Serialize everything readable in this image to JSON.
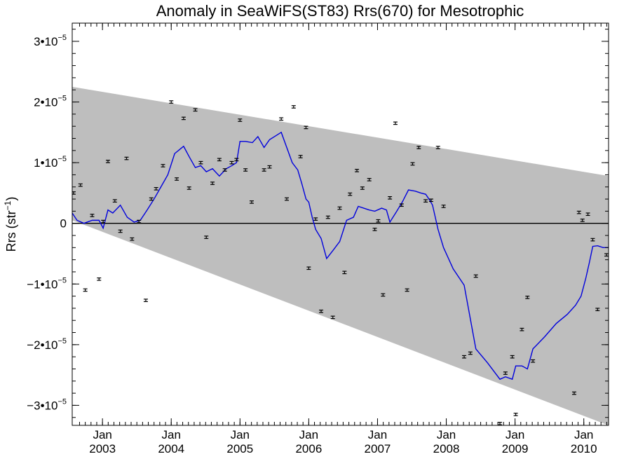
{
  "chart_data": {
    "type": "line",
    "title": "Anomaly in SeaWiFS(ST83) Rrs(670) for Mesotrophic",
    "ylabel": "Rrs (str⁻¹)",
    "xlabel": "",
    "x_unit": "decimal year",
    "xlim": [
      2002.56,
      2010.36
    ],
    "ylim": [
      -3.33e-05,
      3.3e-05
    ],
    "grid": false,
    "y_ticks": [
      {
        "value": -3e-05,
        "label_mantissa": "−3•10",
        "label_exp": "−5"
      },
      {
        "value": -2e-05,
        "label_mantissa": "−2•10",
        "label_exp": "−5"
      },
      {
        "value": -1e-05,
        "label_mantissa": "−1•10",
        "label_exp": "−5"
      },
      {
        "value": 0,
        "label_mantissa": "0",
        "label_exp": ""
      },
      {
        "value": 1e-05,
        "label_mantissa": "1•10",
        "label_exp": "−5"
      },
      {
        "value": 2e-05,
        "label_mantissa": "2•10",
        "label_exp": "−5"
      },
      {
        "value": 3e-05,
        "label_mantissa": "3•10",
        "label_exp": "−5"
      }
    ],
    "x_ticks": [
      {
        "value": 2003.0,
        "month": "Jan",
        "year": "2003"
      },
      {
        "value": 2004.0,
        "month": "Jan",
        "year": "2004"
      },
      {
        "value": 2005.0,
        "month": "Jan",
        "year": "2005"
      },
      {
        "value": 2006.0,
        "month": "Jan",
        "year": "2006"
      },
      {
        "value": 2007.0,
        "month": "Jan",
        "year": "2007"
      },
      {
        "value": 2008.0,
        "month": "Jan",
        "year": "2008"
      },
      {
        "value": 2009.0,
        "month": "Jan",
        "year": "2009"
      },
      {
        "value": 2010.0,
        "month": "Jan",
        "year": "2010"
      }
    ],
    "envelope": {
      "color": "#bebebe",
      "upper": [
        [
          2002.56,
          2.25e-05
        ],
        [
          2010.36,
          7.8e-06
        ]
      ],
      "lower": [
        [
          2002.56,
          5e-07
        ],
        [
          2010.36,
          -3.33e-05
        ]
      ]
    },
    "zero_line": {
      "y": 0,
      "color": "#000000"
    },
    "series": [
      {
        "kind": "points_with_errorbars",
        "color": "#000000",
        "error": 2e-07,
        "points": [
          [
            2002.58,
            5e-06
          ],
          [
            2002.68,
            6.3e-06
          ],
          [
            2002.75,
            -1.1e-05
          ],
          [
            2002.85,
            1.3e-06
          ],
          [
            2002.95,
            -9.2e-06
          ],
          [
            2003.01,
            3e-07
          ],
          [
            2003.08,
            1.02e-05
          ],
          [
            2003.18,
            3.7e-06
          ],
          [
            2003.26,
            -1.3e-06
          ],
          [
            2003.35,
            1.07e-05
          ],
          [
            2003.43,
            -2.6e-06
          ],
          [
            2003.53,
            3e-07
          ],
          [
            2003.63,
            -1.27e-05
          ],
          [
            2003.71,
            4e-06
          ],
          [
            2003.78,
            5.7e-06
          ],
          [
            2003.88,
            9.5e-06
          ],
          [
            2004.0,
            2e-05
          ],
          [
            2004.08,
            7.3e-06
          ],
          [
            2004.18,
            1.73e-05
          ],
          [
            2004.26,
            5.8e-06
          ],
          [
            2004.35,
            1.87e-05
          ],
          [
            2004.43,
            1e-05
          ],
          [
            2004.51,
            -2.3e-06
          ],
          [
            2004.6,
            6.6e-06
          ],
          [
            2004.7,
            1.05e-05
          ],
          [
            2004.78,
            8.8e-06
          ],
          [
            2004.88,
            1e-05
          ],
          [
            2004.95,
            1.05e-05
          ],
          [
            2005.0,
            1.7e-05
          ],
          [
            2005.08,
            8.8e-06
          ],
          [
            2005.17,
            3.5e-06
          ],
          [
            2005.35,
            8.8e-06
          ],
          [
            2005.43,
            9.3e-06
          ],
          [
            2005.6,
            1.72e-05
          ],
          [
            2005.68,
            4e-06
          ],
          [
            2005.78,
            1.92e-05
          ],
          [
            2005.88,
            1.1e-05
          ],
          [
            2005.96,
            1.58e-05
          ],
          [
            2006.0,
            -7.4e-06
          ],
          [
            2006.1,
            7e-07
          ],
          [
            2006.18,
            -1.45e-05
          ],
          [
            2006.28,
            1e-06
          ],
          [
            2006.35,
            -1.55e-05
          ],
          [
            2006.45,
            2.5e-06
          ],
          [
            2006.52,
            -8.1e-06
          ],
          [
            2006.6,
            4.8e-06
          ],
          [
            2006.7,
            8.7e-06
          ],
          [
            2006.78,
            5.8e-06
          ],
          [
            2006.88,
            7.2e-06
          ],
          [
            2006.96,
            -1e-06
          ],
          [
            2007.01,
            4e-07
          ],
          [
            2007.08,
            -1.18e-05
          ],
          [
            2007.18,
            4.2e-06
          ],
          [
            2007.26,
            1.65e-05
          ],
          [
            2007.35,
            3e-06
          ],
          [
            2007.43,
            -1.1e-05
          ],
          [
            2007.51,
            9.8e-06
          ],
          [
            2007.6,
            1.25e-05
          ],
          [
            2007.7,
            3.7e-06
          ],
          [
            2007.78,
            3.8e-06
          ],
          [
            2007.88,
            1.25e-05
          ],
          [
            2007.96,
            2.8e-06
          ],
          [
            2008.26,
            -2.2e-05
          ],
          [
            2008.35,
            -2.14e-05
          ],
          [
            2008.43,
            -8.7e-06
          ],
          [
            2008.78,
            -3.3e-05
          ],
          [
            2008.86,
            -2.47e-05
          ],
          [
            2008.96,
            -2.2e-05
          ],
          [
            2009.01,
            -3.15e-05
          ],
          [
            2009.1,
            -1.75e-05
          ],
          [
            2009.18,
            -1.22e-05
          ],
          [
            2009.26,
            -2.27e-05
          ],
          [
            2009.86,
            -2.8e-05
          ],
          [
            2009.93,
            1.8e-06
          ],
          [
            2009.98,
            5e-07
          ],
          [
            2010.06,
            1.5e-06
          ],
          [
            2010.13,
            -2.7e-06
          ],
          [
            2010.2,
            -1.42e-05
          ],
          [
            2010.33,
            -5.2e-06
          ]
        ]
      },
      {
        "kind": "line",
        "color": "#0000dd",
        "points": [
          [
            2002.56,
            1.7e-06
          ],
          [
            2002.63,
            5e-07
          ],
          [
            2002.73,
            0.0
          ],
          [
            2002.85,
            5e-07
          ],
          [
            2002.95,
            5e-07
          ],
          [
            2003.01,
            -8e-07
          ],
          [
            2003.08,
            2.2e-06
          ],
          [
            2003.15,
            1.7e-06
          ],
          [
            2003.26,
            3e-06
          ],
          [
            2003.36,
            1e-06
          ],
          [
            2003.46,
            2e-07
          ],
          [
            2003.55,
            5e-07
          ],
          [
            2003.65,
            2.2e-06
          ],
          [
            2003.75,
            4e-06
          ],
          [
            2003.85,
            6e-06
          ],
          [
            2003.95,
            8e-06
          ],
          [
            2004.05,
            1.15e-05
          ],
          [
            2004.18,
            1.27e-05
          ],
          [
            2004.26,
            1.1e-05
          ],
          [
            2004.35,
            9.2e-06
          ],
          [
            2004.43,
            9.5e-06
          ],
          [
            2004.51,
            8.5e-06
          ],
          [
            2004.6,
            9e-06
          ],
          [
            2004.7,
            7.8e-06
          ],
          [
            2004.8,
            9e-06
          ],
          [
            2004.88,
            9.5e-06
          ],
          [
            2004.95,
            1e-05
          ],
          [
            2005.0,
            1.35e-05
          ],
          [
            2005.08,
            1.35e-05
          ],
          [
            2005.18,
            1.33e-05
          ],
          [
            2005.26,
            1.43e-05
          ],
          [
            2005.35,
            1.25e-05
          ],
          [
            2005.43,
            1.38e-05
          ],
          [
            2005.53,
            1.45e-05
          ],
          [
            2005.6,
            1.5e-05
          ],
          [
            2005.68,
            1.25e-05
          ],
          [
            2005.76,
            1e-05
          ],
          [
            2005.84,
            8.8e-06
          ],
          [
            2005.9,
            6.5e-06
          ],
          [
            2005.96,
            4e-06
          ],
          [
            2006.0,
            3.5e-06
          ],
          [
            2006.05,
            1e-06
          ],
          [
            2006.1,
            -1e-06
          ],
          [
            2006.18,
            -2.5e-06
          ],
          [
            2006.26,
            -5.8e-06
          ],
          [
            2006.35,
            -4.5e-06
          ],
          [
            2006.45,
            -3e-06
          ],
          [
            2006.55,
            5e-07
          ],
          [
            2006.65,
            1e-06
          ],
          [
            2006.72,
            2.8e-06
          ],
          [
            2006.8,
            2.5e-06
          ],
          [
            2006.88,
            2.2e-06
          ],
          [
            2006.96,
            2e-06
          ],
          [
            2007.06,
            2.5e-06
          ],
          [
            2007.13,
            2.2e-06
          ],
          [
            2007.18,
            2e-07
          ],
          [
            2007.28,
            2e-06
          ],
          [
            2007.36,
            3.5e-06
          ],
          [
            2007.45,
            5.5e-06
          ],
          [
            2007.55,
            5.3e-06
          ],
          [
            2007.63,
            5e-06
          ],
          [
            2007.7,
            4.8e-06
          ],
          [
            2007.76,
            3.8e-06
          ],
          [
            2007.8,
            3e-06
          ],
          [
            2007.88,
            -1e-06
          ],
          [
            2007.96,
            -4e-06
          ],
          [
            2008.1,
            -7.5e-06
          ],
          [
            2008.26,
            -1.02e-05
          ],
          [
            2008.43,
            -2.07e-05
          ],
          [
            2008.6,
            -2.3e-05
          ],
          [
            2008.7,
            -2.45e-05
          ],
          [
            2008.78,
            -2.57e-05
          ],
          [
            2008.86,
            -2.53e-05
          ],
          [
            2008.96,
            -2.57e-05
          ],
          [
            2009.01,
            -2.35e-05
          ],
          [
            2009.1,
            -2.35e-05
          ],
          [
            2009.18,
            -2.4e-05
          ],
          [
            2009.26,
            -2.07e-05
          ],
          [
            2009.43,
            -1.87e-05
          ],
          [
            2009.6,
            -1.65e-05
          ],
          [
            2009.76,
            -1.5e-05
          ],
          [
            2009.88,
            -1.35e-05
          ],
          [
            2009.96,
            -1.2e-05
          ],
          [
            2010.03,
            -9e-06
          ],
          [
            2010.08,
            -6.5e-06
          ],
          [
            2010.13,
            -3.8e-06
          ],
          [
            2010.2,
            -3.7e-06
          ],
          [
            2010.28,
            -4e-06
          ],
          [
            2010.36,
            -4e-06
          ]
        ]
      }
    ]
  }
}
